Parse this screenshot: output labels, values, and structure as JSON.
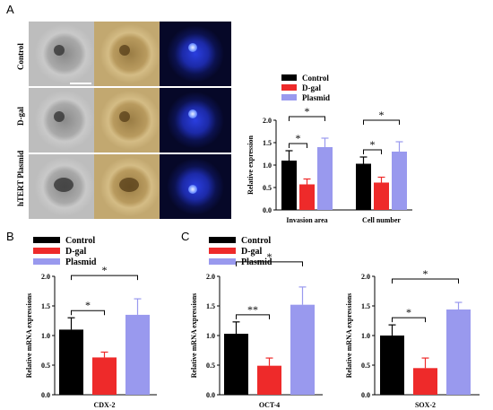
{
  "panel_letters": [
    "A",
    "B",
    "C"
  ],
  "row_labels": [
    "Control",
    "D-gal",
    "hTERT Plasmid"
  ],
  "colors": {
    "Control": "#000000",
    "D-gal": "#ee2a2a",
    "Plasmid": "#9999ee"
  },
  "chart_data": [
    {
      "type": "bar",
      "panel": "A",
      "categories": [
        "Invasion area",
        "Cell number"
      ],
      "series": [
        {
          "name": "Control",
          "values": [
            1.1,
            1.03
          ],
          "errors": [
            0.22,
            0.15
          ]
        },
        {
          "name": "D-gal",
          "values": [
            0.57,
            0.61
          ],
          "errors": [
            0.12,
            0.12
          ]
        },
        {
          "name": "Plasmid",
          "values": [
            1.4,
            1.3
          ],
          "errors": [
            0.2,
            0.22
          ]
        }
      ],
      "ylabel": "Relative expression",
      "ylim": [
        0,
        2.0
      ],
      "yticks": [
        "0.0",
        "0.5",
        "1.0",
        "1.5",
        "2.0"
      ],
      "significance": [
        {
          "category": 0,
          "pair": [
            "Control",
            "D-gal"
          ],
          "label": "*"
        },
        {
          "category": 0,
          "pair": [
            "Control",
            "Plasmid"
          ],
          "label": "*"
        },
        {
          "category": 1,
          "pair": [
            "Control",
            "D-gal"
          ],
          "label": "*"
        },
        {
          "category": 1,
          "pair": [
            "Control",
            "Plasmid"
          ],
          "label": "*"
        }
      ],
      "legend": "top"
    },
    {
      "type": "bar",
      "panel": "B",
      "categories": [
        "CDX-2"
      ],
      "series": [
        {
          "name": "Control",
          "values": [
            1.1
          ],
          "errors": [
            0.2
          ]
        },
        {
          "name": "D-gal",
          "values": [
            0.63
          ],
          "errors": [
            0.09
          ]
        },
        {
          "name": "Plasmid",
          "values": [
            1.35
          ],
          "errors": [
            0.27
          ]
        }
      ],
      "ylabel": "Relative mRNA expressions",
      "ylim": [
        0,
        2.0
      ],
      "yticks": [
        "0.0",
        "0.5",
        "1.0",
        "1.5",
        "2.0"
      ],
      "significance": [
        {
          "pair": [
            "Control",
            "D-gal"
          ],
          "label": "*"
        },
        {
          "pair": [
            "Control",
            "Plasmid"
          ],
          "label": "*"
        }
      ],
      "legend": "top-left"
    },
    {
      "type": "bar",
      "panel": "C",
      "categories": [
        "OCT-4"
      ],
      "series": [
        {
          "name": "Control",
          "values": [
            1.03
          ],
          "errors": [
            0.2
          ]
        },
        {
          "name": "D-gal",
          "values": [
            0.49
          ],
          "errors": [
            0.13
          ]
        },
        {
          "name": "Plasmid",
          "values": [
            1.52
          ],
          "errors": [
            0.3
          ]
        }
      ],
      "ylabel": "Relative mRNA expressions",
      "ylim": [
        0,
        2.0
      ],
      "yticks": [
        "0.0",
        "0.5",
        "1.0",
        "1.5",
        "2.0"
      ],
      "significance": [
        {
          "pair": [
            "Control",
            "D-gal"
          ],
          "label": "**"
        },
        {
          "pair": [
            "Control",
            "Plasmid"
          ],
          "label": "*"
        }
      ],
      "legend": "top-left"
    },
    {
      "type": "bar",
      "panel": "C",
      "categories": [
        "SOX-2"
      ],
      "series": [
        {
          "name": "Control",
          "values": [
            1.0
          ],
          "errors": [
            0.18
          ]
        },
        {
          "name": "D-gal",
          "values": [
            0.45
          ],
          "errors": [
            0.17
          ]
        },
        {
          "name": "Plasmid",
          "values": [
            1.44
          ],
          "errors": [
            0.12
          ]
        }
      ],
      "ylabel": "Relative mRNA expressions",
      "ylim": [
        0,
        2.0
      ],
      "yticks": [
        "0.0",
        "0.5",
        "1.0",
        "1.5",
        "2.0"
      ],
      "significance": [
        {
          "pair": [
            "Control",
            "D-gal"
          ],
          "label": "*"
        },
        {
          "pair": [
            "Control",
            "Plasmid"
          ],
          "label": "*"
        }
      ]
    }
  ]
}
